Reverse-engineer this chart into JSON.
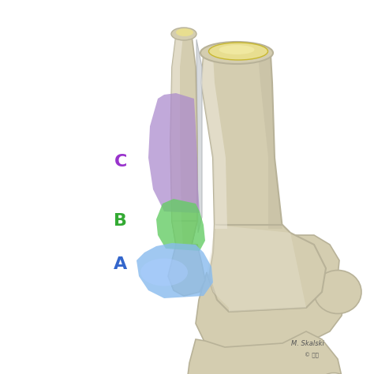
{
  "background_color": "#ffffff",
  "bone_color": "#d4cdb0",
  "bone_dark": "#b8b298",
  "bone_light": "#e8e3d0",
  "bone_highlight": "#f0ece0",
  "cartilage_yellow": "#e8de90",
  "cartilage_inner": "#f0e8a0",
  "membrane_color": "#c8ccd0",
  "fracture_A_color": "#88bbee",
  "fracture_A_color2": "#aaccff",
  "fracture_B_color": "#66cc66",
  "fracture_B_color2": "#88dd88",
  "fracture_C_color": "#aa88cc",
  "fracture_C_color2": "#cc99ee",
  "label_A": "A",
  "label_B": "B",
  "label_C": "C",
  "label_A_color": "#3366cc",
  "label_B_color": "#33aa33",
  "label_C_color": "#9933cc",
  "label_fontsize": 16,
  "fig_width": 4.74,
  "fig_height": 4.74,
  "dpi": 100
}
